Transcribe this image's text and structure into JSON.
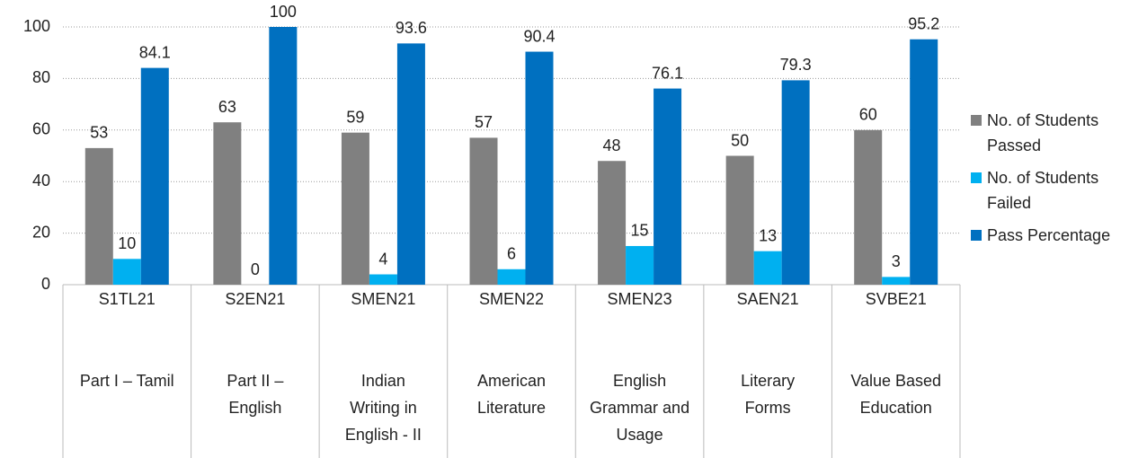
{
  "chart_data": {
    "type": "bar",
    "categories": [
      "S1TL21",
      "S2EN21",
      "SMEN21",
      "SMEN22",
      "SMEN23",
      "SAEN21",
      "SVBE21"
    ],
    "category_descriptions": [
      [
        "Part I – Tamil"
      ],
      [
        "Part II –",
        "English"
      ],
      [
        "Indian",
        "Writing in",
        "English - II"
      ],
      [
        "American",
        "Literature"
      ],
      [
        "English",
        "Grammar and",
        "Usage"
      ],
      [
        "Literary",
        "Forms"
      ],
      [
        "Value Based",
        "Education"
      ]
    ],
    "series": [
      {
        "name": "No. of Students Passed",
        "color": "#808080",
        "values": [
          53,
          63,
          59,
          57,
          48,
          50,
          60
        ]
      },
      {
        "name": "No. of Students Failed",
        "color": "#00b0f0",
        "values": [
          10,
          0,
          4,
          6,
          15,
          13,
          3
        ]
      },
      {
        "name": "Pass Percentage",
        "color": "#0070c0",
        "values": [
          84.1,
          100,
          93.6,
          90.4,
          76.1,
          79.3,
          95.2
        ]
      }
    ],
    "ylim": [
      0,
      100
    ],
    "yticks": [
      0,
      20,
      40,
      60,
      80,
      100
    ],
    "grid": true,
    "legend": "right"
  }
}
